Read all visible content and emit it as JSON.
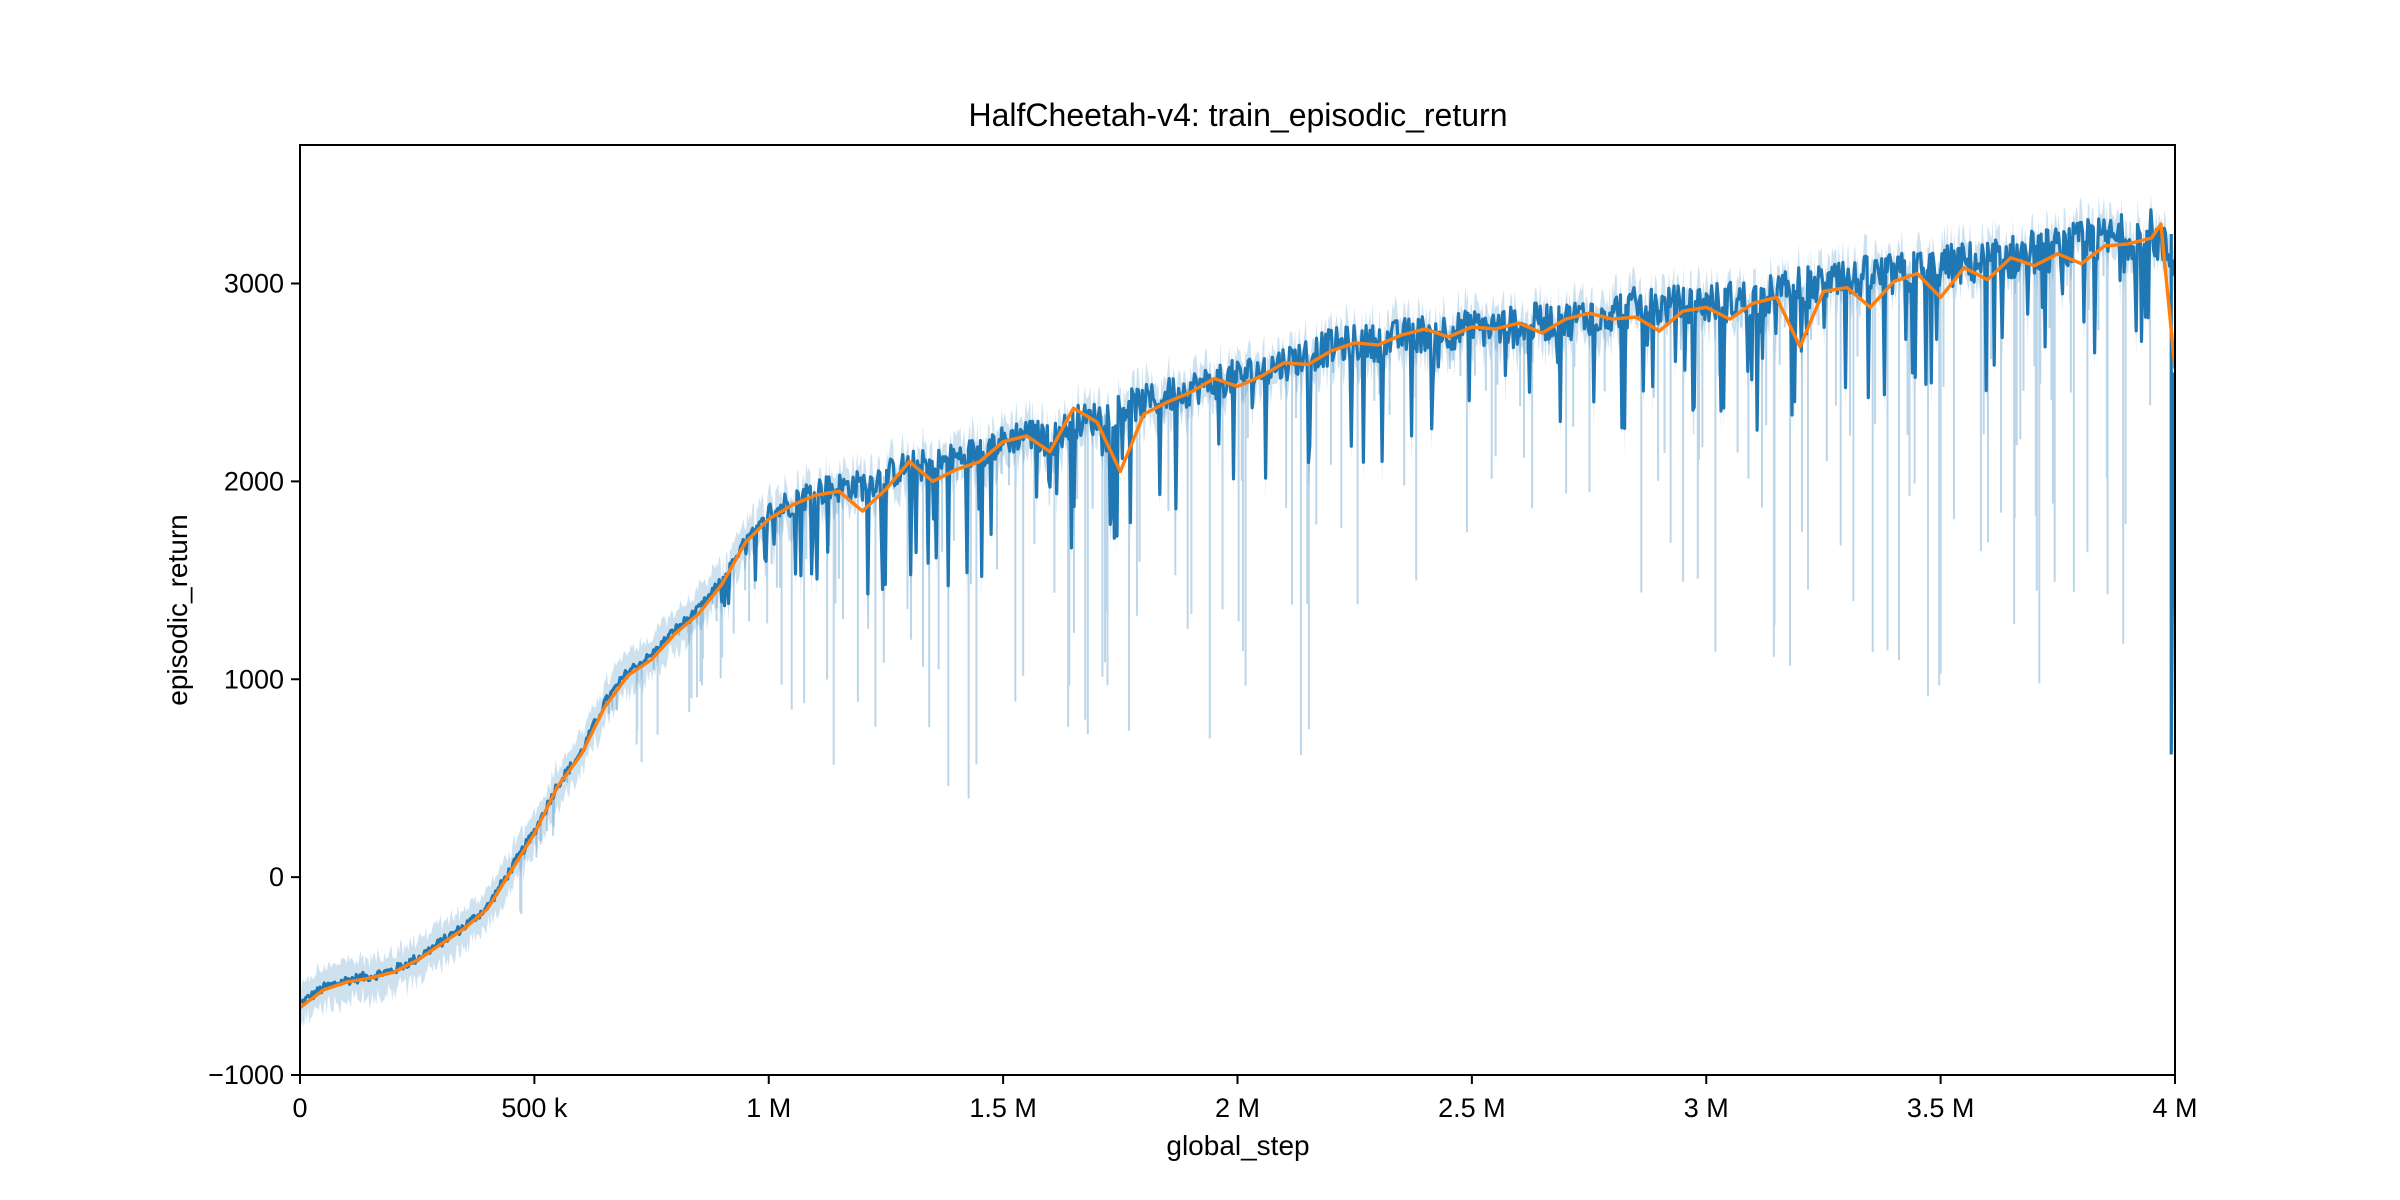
{
  "chart_data": {
    "type": "line",
    "title": "HalfCheetah-v4: train_episodic_return",
    "xlabel": "global_step",
    "ylabel": "episodic_return",
    "xlim": [
      0,
      4000000
    ],
    "ylim": [
      -1000,
      3700
    ],
    "x_ticks": [
      {
        "value": 0,
        "label": "0"
      },
      {
        "value": 500000,
        "label": "500 k"
      },
      {
        "value": 1000000,
        "label": "1 M"
      },
      {
        "value": 1500000,
        "label": "1.5 M"
      },
      {
        "value": 2000000,
        "label": "2 M"
      },
      {
        "value": 2500000,
        "label": "2.5 M"
      },
      {
        "value": 3000000,
        "label": "3 M"
      },
      {
        "value": 3500000,
        "label": "3.5 M"
      },
      {
        "value": 4000000,
        "label": "4 M"
      }
    ],
    "y_ticks": [
      {
        "value": -1000,
        "label": "−1000"
      },
      {
        "value": 0,
        "label": "0"
      },
      {
        "value": 1000,
        "label": "1000"
      },
      {
        "value": 2000,
        "label": "2000"
      },
      {
        "value": 3000,
        "label": "3000"
      }
    ],
    "grid": false,
    "colors": {
      "raw": "#1f77b4",
      "band": "#1f77b4",
      "smoothed": "#ff7f0e"
    },
    "series": [
      {
        "role": "raw",
        "x": [
          0,
          50000,
          100000,
          150000,
          200000,
          250000,
          300000,
          350000,
          400000,
          450000,
          500000,
          550000,
          600000,
          650000,
          700000,
          750000,
          800000,
          850000,
          900000,
          950000,
          1000000,
          1050000,
          1100000,
          1150000,
          1200000,
          1250000,
          1300000,
          1350000,
          1400000,
          1450000,
          1500000,
          1550000,
          1600000,
          1650000,
          1700000,
          1750000,
          1800000,
          1850000,
          1900000,
          1950000,
          2000000,
          2050000,
          2100000,
          2150000,
          2200000,
          2250000,
          2300000,
          2350000,
          2400000,
          2450000,
          2500000,
          2550000,
          2600000,
          2650000,
          2700000,
          2750000,
          2800000,
          2850000,
          2900000,
          2950000,
          3000000,
          3050000,
          3100000,
          3150000,
          3200000,
          3250000,
          3300000,
          3350000,
          3400000,
          3450000,
          3500000,
          3550000,
          3600000,
          3650000,
          3700000,
          3750000,
          3800000,
          3850000,
          3900000,
          3950000,
          4000000
        ],
        "values": [
          -640,
          -560,
          -520,
          -500,
          -470,
          -410,
          -330,
          -250,
          -150,
          40,
          230,
          470,
          630,
          880,
          1040,
          1120,
          1250,
          1350,
          1500,
          1700,
          1830,
          1900,
          1950,
          1970,
          1980,
          2030,
          2080,
          2080,
          2120,
          2150,
          2200,
          2250,
          2200,
          2300,
          2320,
          2370,
          2400,
          2430,
          2470,
          2500,
          2530,
          2560,
          2600,
          2640,
          2680,
          2700,
          2700,
          2730,
          2750,
          2760,
          2770,
          2780,
          2790,
          2810,
          2810,
          2840,
          2860,
          2880,
          2880,
          2890,
          2900,
          2910,
          2920,
          2950,
          2980,
          2990,
          3000,
          3040,
          3040,
          3060,
          3080,
          3100,
          3110,
          3130,
          3160,
          3170,
          3200,
          3220,
          3240,
          3260,
          3100
        ]
      },
      {
        "role": "smoothed",
        "x": [
          0,
          50000,
          100000,
          150000,
          200000,
          250000,
          300000,
          350000,
          400000,
          450000,
          500000,
          550000,
          600000,
          650000,
          700000,
          750000,
          800000,
          850000,
          900000,
          950000,
          1000000,
          1050000,
          1100000,
          1150000,
          1200000,
          1250000,
          1300000,
          1350000,
          1400000,
          1450000,
          1500000,
          1550000,
          1600000,
          1650000,
          1700000,
          1750000,
          1800000,
          1850000,
          1900000,
          1950000,
          2000000,
          2050000,
          2100000,
          2150000,
          2200000,
          2250000,
          2300000,
          2350000,
          2400000,
          2450000,
          2500000,
          2550000,
          2600000,
          2650000,
          2700000,
          2750000,
          2800000,
          2850000,
          2900000,
          2950000,
          3000000,
          3050000,
          3100000,
          3150000,
          3200000,
          3250000,
          3300000,
          3350000,
          3400000,
          3450000,
          3500000,
          3550000,
          3600000,
          3650000,
          3700000,
          3750000,
          3800000,
          3850000,
          3900000,
          3950000,
          3970000,
          4000000
        ],
        "values": [
          -660,
          -570,
          -530,
          -510,
          -480,
          -420,
          -340,
          -260,
          -160,
          30,
          220,
          460,
          620,
          860,
          1020,
          1100,
          1230,
          1330,
          1480,
          1690,
          1810,
          1880,
          1930,
          1950,
          1850,
          1960,
          2100,
          2000,
          2060,
          2100,
          2200,
          2230,
          2150,
          2370,
          2300,
          2050,
          2340,
          2400,
          2450,
          2520,
          2480,
          2530,
          2600,
          2590,
          2660,
          2700,
          2690,
          2740,
          2770,
          2730,
          2780,
          2770,
          2800,
          2750,
          2820,
          2850,
          2820,
          2830,
          2760,
          2860,
          2880,
          2820,
          2900,
          2930,
          2680,
          2960,
          2980,
          2880,
          3010,
          3050,
          2930,
          3080,
          3020,
          3130,
          3090,
          3150,
          3100,
          3190,
          3200,
          3230,
          3300,
          2570
        ]
      }
    ],
    "band": {
      "role": "band",
      "lower_envelope_min": [
        -800,
        -700,
        -620,
        -580,
        -540,
        -470,
        -380,
        -300,
        -210,
        -40,
        -440,
        360,
        540,
        760,
        600,
        500,
        600,
        900,
        1000,
        1300,
        1100,
        800,
        600,
        400,
        250,
        800,
        600,
        500,
        400,
        250,
        600,
        800,
        700,
        750,
        650,
        450,
        800,
        900,
        700,
        600,
        800,
        900,
        1000,
        350,
        1500,
        1200,
        1400,
        900,
        1700,
        1800,
        1600,
        2000,
        1900,
        1700,
        1250,
        1300,
        1700,
        800,
        1300,
        1400,
        950,
        1100,
        1350,
        1000,
        1000,
        800,
        1000,
        900,
        1000,
        950,
        850,
        1100,
        1000,
        900,
        900,
        1100,
        1100,
        900,
        1200,
        1200,
        130
      ],
      "upper_envelope_max": [
        -560,
        -480,
        -440,
        -420,
        -400,
        -340,
        -260,
        -180,
        -80,
        120,
        320,
        560,
        720,
        960,
        1130,
        1220,
        1350,
        1450,
        1600,
        1830,
        1960,
        2080,
        2150,
        2180,
        2200,
        2270,
        2330,
        2340,
        2380,
        2420,
        2480,
        2530,
        2520,
        2600,
        2630,
        2660,
        2700,
        2740,
        2770,
        2800,
        2820,
        2860,
        2890,
        2900,
        2940,
        2970,
        2980,
        3000,
        3020,
        3040,
        3050,
        3060,
        3080,
        3100,
        3100,
        3120,
        3130,
        3150,
        3160,
        3170,
        3180,
        3200,
        3210,
        3230,
        3260,
        3280,
        3300,
        3330,
        3330,
        3350,
        3370,
        3390,
        3400,
        3420,
        3440,
        3450,
        3470,
        3480,
        3490,
        3500,
        3460
      ]
    }
  }
}
